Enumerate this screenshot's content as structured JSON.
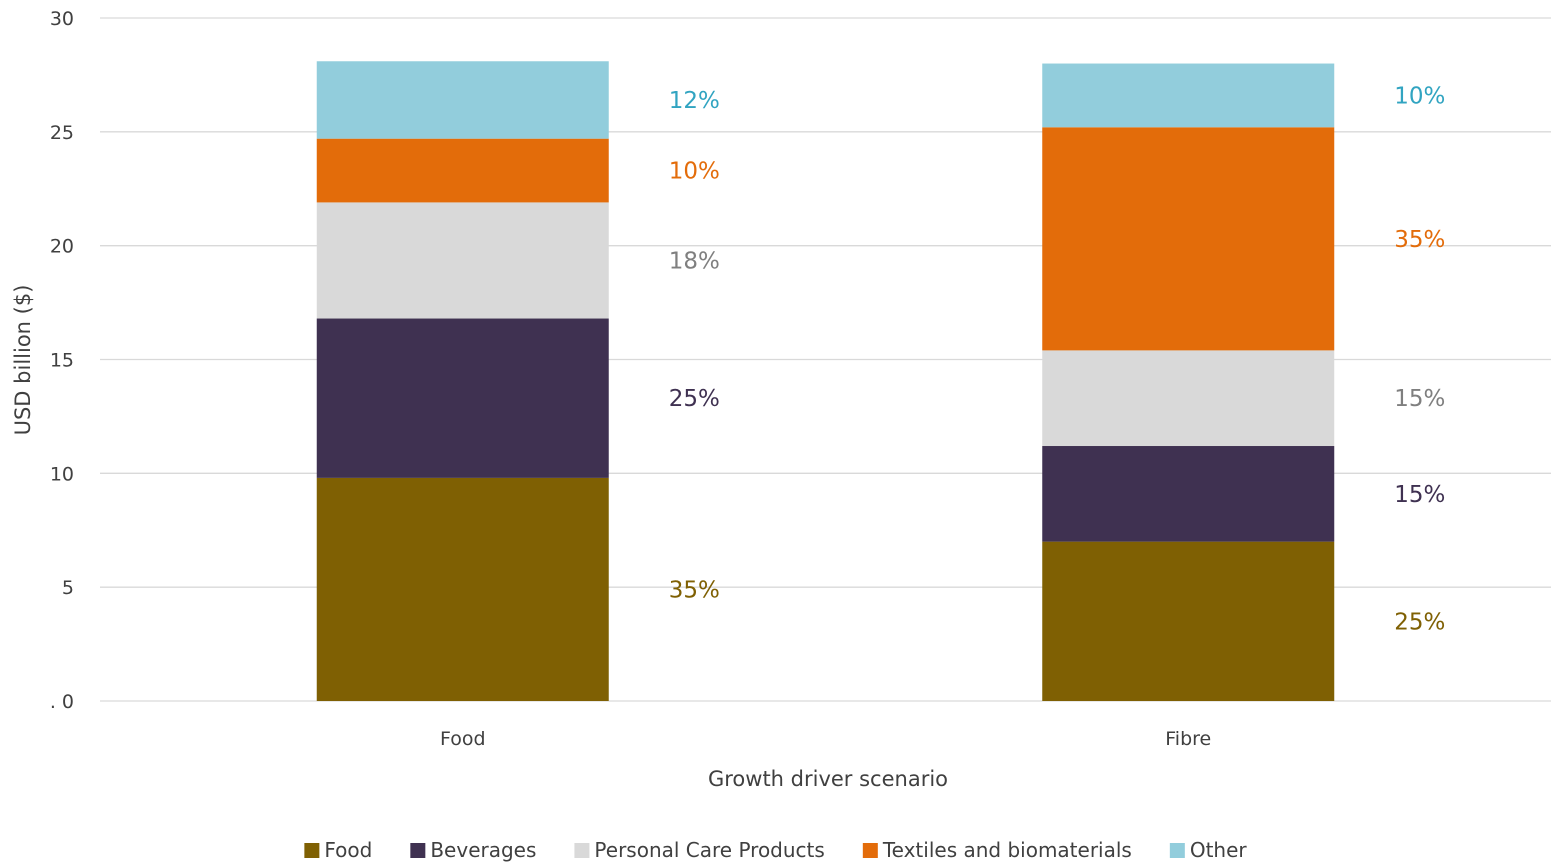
{
  "chart_data": {
    "type": "bar",
    "stacked": true,
    "title": "",
    "xlabel": "Growth driver scenario",
    "ylabel": "USD billion ($)",
    "ylim": [
      0,
      30
    ],
    "yticks": [
      {
        "value": 0,
        "label": ". 0"
      },
      {
        "value": 5,
        "label": "5"
      },
      {
        "value": 10,
        "label": "10"
      },
      {
        "value": 15,
        "label": "15"
      },
      {
        "value": 20,
        "label": "20"
      },
      {
        "value": 25,
        "label": "25"
      },
      {
        "value": 30,
        "label": "30"
      }
    ],
    "categories": [
      "Food",
      "Fibre"
    ],
    "series": [
      {
        "name": "Food",
        "color": "#7F6003",
        "values": [
          9.8,
          7.0
        ],
        "labels": [
          "35%",
          "25%"
        ]
      },
      {
        "name": "Beverages",
        "color": "#3F3151",
        "values": [
          7.0,
          4.2
        ],
        "labels": [
          "25%",
          "15%"
        ]
      },
      {
        "name": "Personal Care Products",
        "color": "#D9D9D9",
        "label_color": "#7F7F7F",
        "values": [
          5.1,
          4.2
        ],
        "labels": [
          "18%",
          "15%"
        ]
      },
      {
        "name": "Textiles and biomaterials",
        "color": "#E36C0A",
        "values": [
          2.8,
          9.8
        ],
        "labels": [
          "10%",
          "35%"
        ]
      },
      {
        "name": "Other",
        "color": "#92CDDC",
        "label_color": "#31A4C1",
        "values": [
          3.4,
          2.8
        ],
        "labels": [
          "12%",
          "10%"
        ]
      }
    ],
    "grid": true,
    "legend_position": "bottom"
  }
}
